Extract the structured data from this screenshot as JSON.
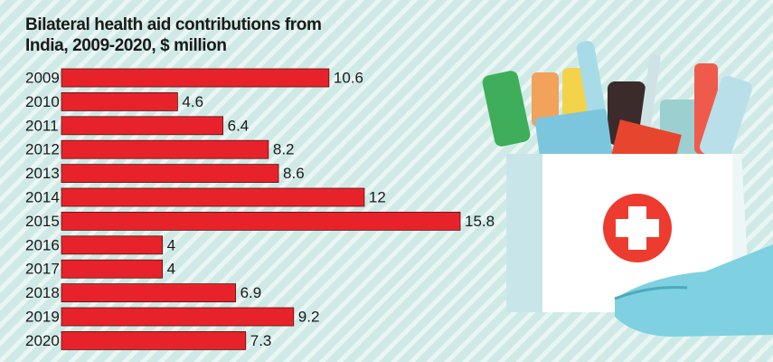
{
  "chart_data": {
    "type": "bar",
    "orientation": "horizontal",
    "title": "Bilateral health aid contributions from India, 2009-2020, $ million",
    "categories": [
      "2009",
      "2010",
      "2011",
      "2012",
      "2013",
      "2014",
      "2015",
      "2016",
      "2017",
      "2018",
      "2019",
      "2020"
    ],
    "values": [
      10.6,
      4.6,
      6.4,
      8.2,
      8.6,
      12,
      15.8,
      4,
      4,
      6.9,
      9.2,
      7.3
    ],
    "color": "#e8222a"
  }
}
